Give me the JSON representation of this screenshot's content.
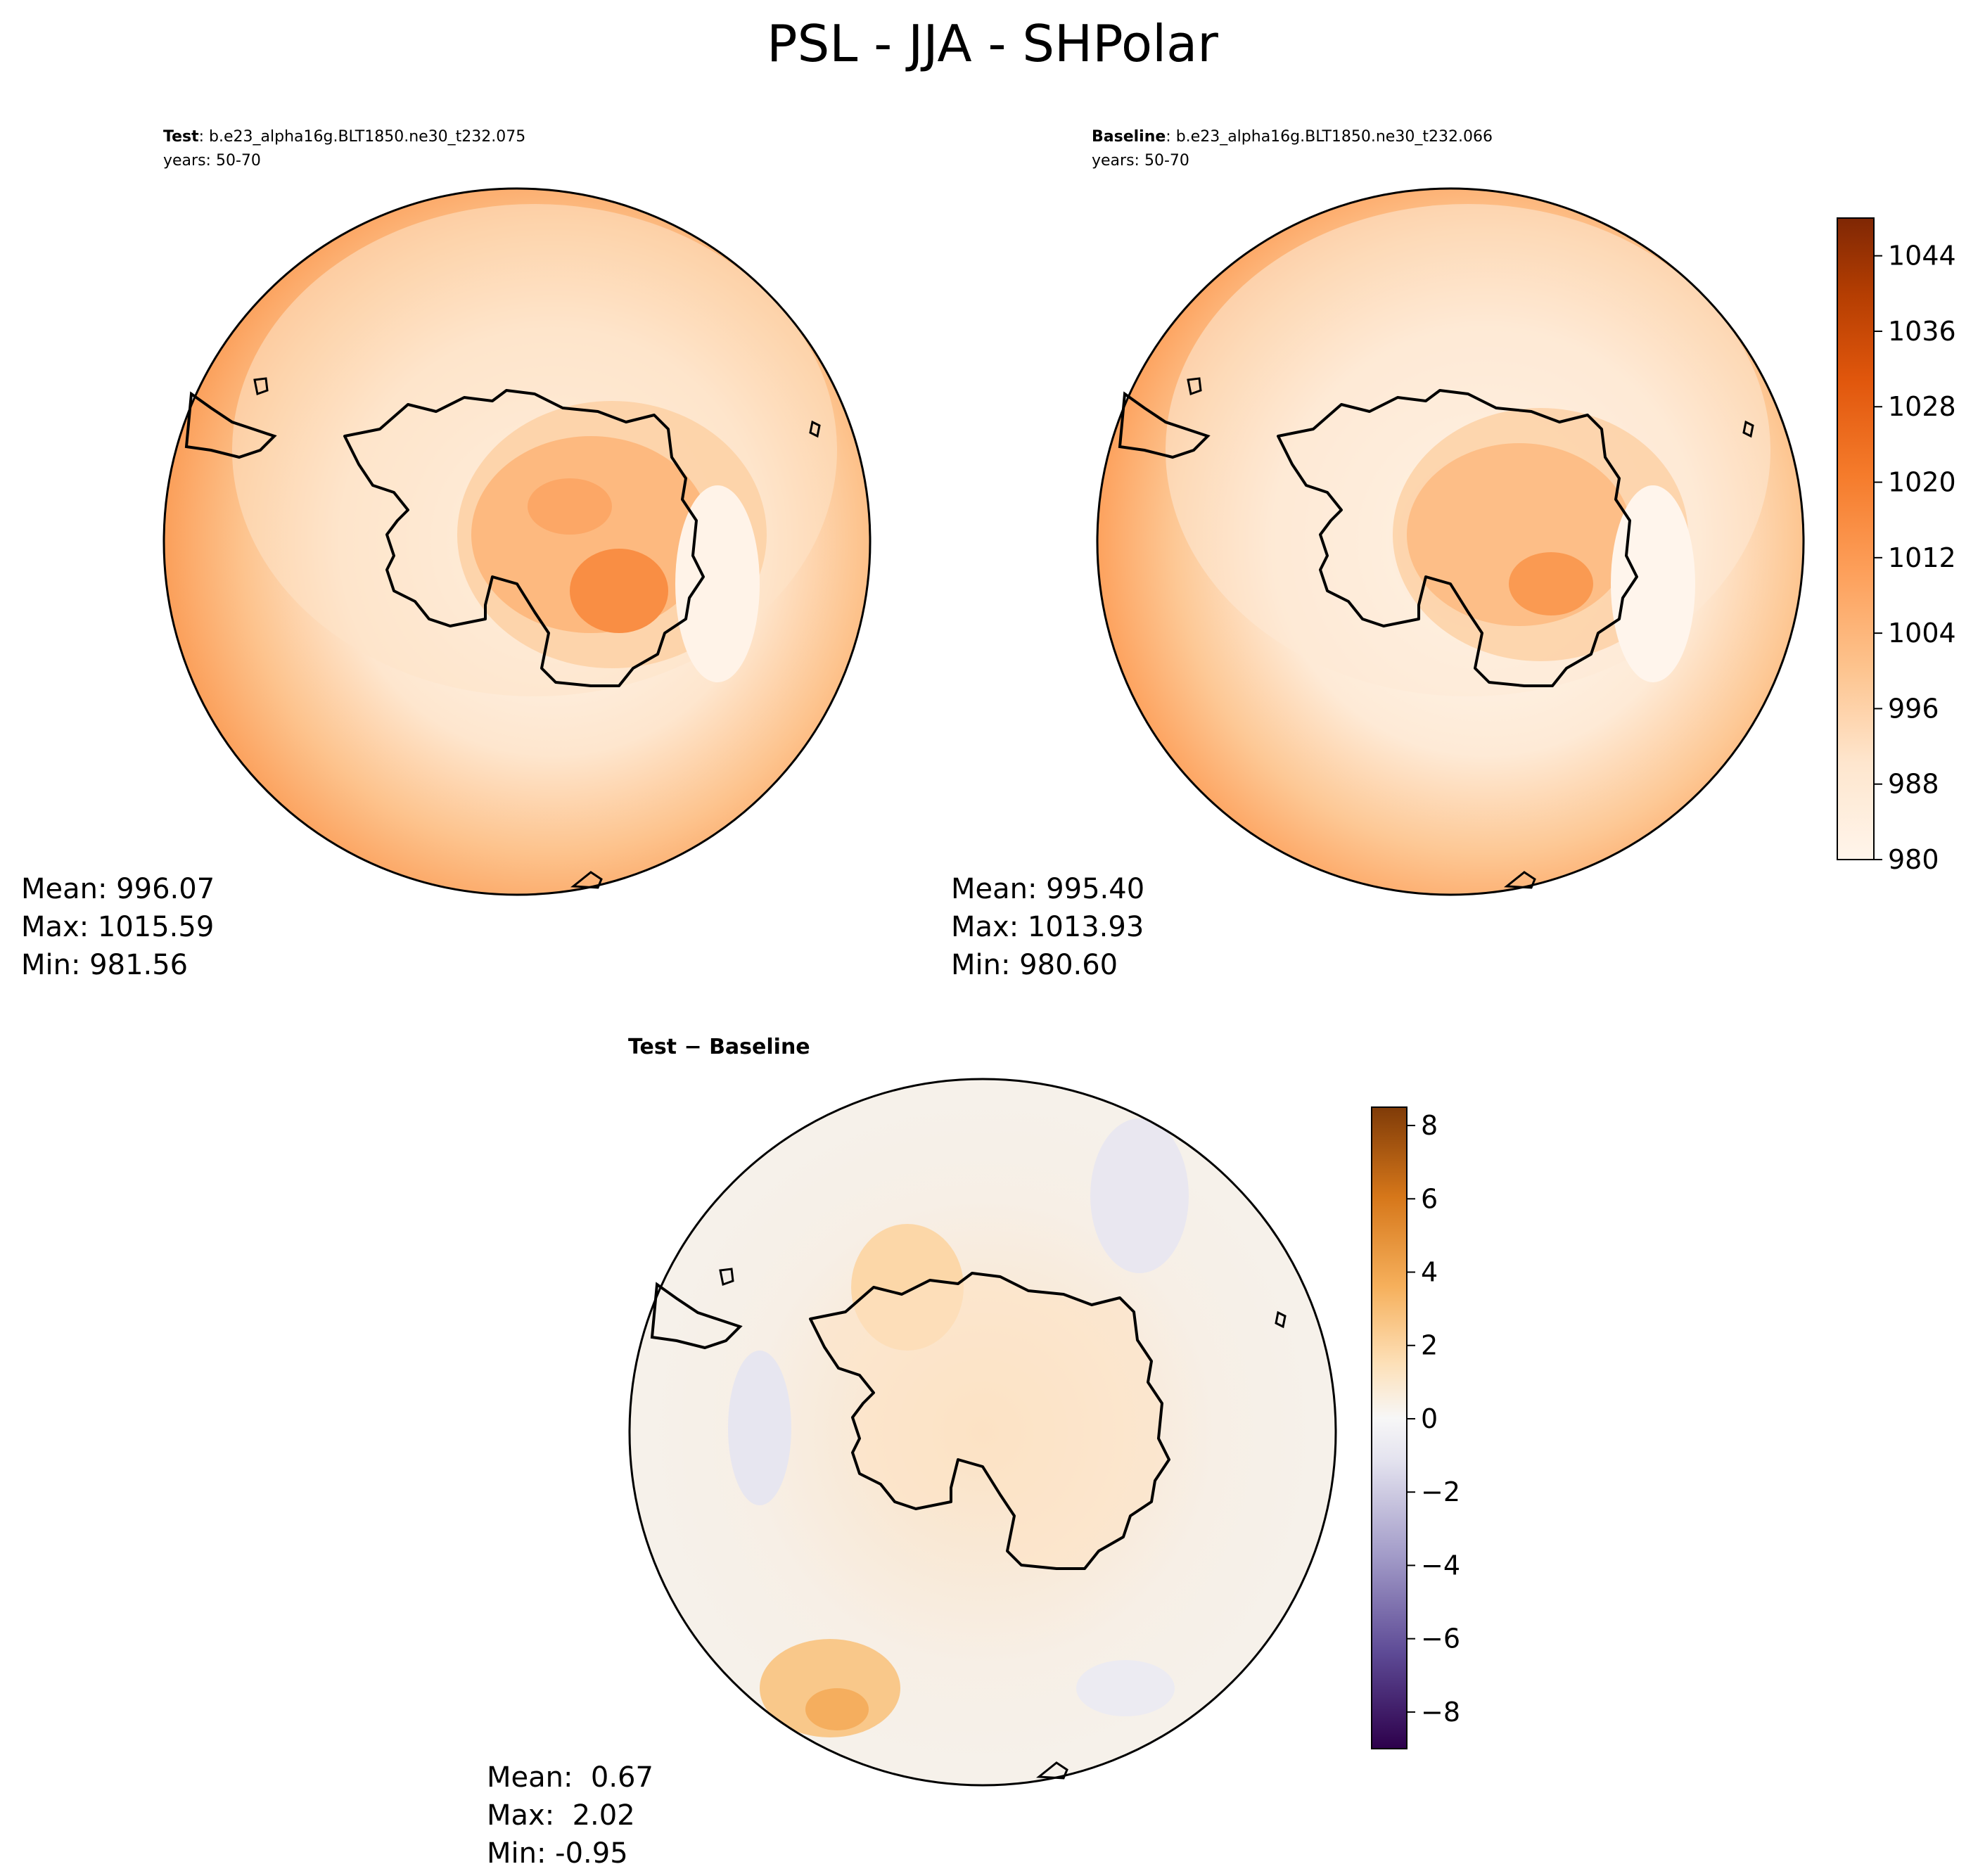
{
  "figure_title": "PSL - JJA - SHPolar",
  "panels": {
    "test": {
      "label": "Test",
      "case": ": b.e23_alpha16g.BLT1850.ne30_t232.075",
      "years": "years: 50-70",
      "mean": "Mean: 996.07",
      "max": "Max: 1015.59",
      "min": "Min: 981.56"
    },
    "baseline": {
      "label": "Baseline",
      "case": ": b.e23_alpha16g.BLT1850.ne30_t232.066",
      "years": "years: 50-70",
      "mean": "Mean: 995.40",
      "max": "Max: 1013.93",
      "min": "Min: 980.60"
    },
    "diff": {
      "title_a": "Test",
      "title_op": " − ",
      "title_b": "Baseline",
      "mean": "Mean:  0.67",
      "max": "Max:  2.02",
      "min": "Min: -0.95"
    }
  },
  "colors": {
    "psl_low": "#fff5eb",
    "psl_high": "#7f2704",
    "diff_negative": "#2d004b",
    "diff_zero": "#f7f7f7",
    "diff_positive": "#7f3b08"
  },
  "chart_data": [
    {
      "type": "heatmap",
      "panel": "Test",
      "projection": "south-polar-stereographic",
      "variable": "PSL",
      "stats": {
        "mean": 996.07,
        "max": 1015.59,
        "min": 981.56
      },
      "colorbar": {
        "range": [
          980,
          1048
        ],
        "ticks": [
          "980",
          "988",
          "996",
          "1004",
          "1012",
          "1020",
          "1028",
          "1036",
          "1044"
        ]
      }
    },
    {
      "type": "heatmap",
      "panel": "Baseline",
      "projection": "south-polar-stereographic",
      "variable": "PSL",
      "stats": {
        "mean": 995.4,
        "max": 1013.93,
        "min": 980.6
      },
      "colorbar": {
        "range": [
          980,
          1048
        ],
        "ticks": [
          "980",
          "988",
          "996",
          "1004",
          "1012",
          "1020",
          "1028",
          "1036",
          "1044"
        ]
      }
    },
    {
      "type": "heatmap",
      "panel": "Test - Baseline",
      "projection": "south-polar-stereographic",
      "stats": {
        "mean": 0.67,
        "max": 2.02,
        "min": -0.95
      },
      "colorbar": {
        "range": [
          -9,
          8.5
        ],
        "ticks": [
          "−8",
          "−6",
          "−4",
          "−2",
          "0",
          "2",
          "4",
          "6",
          "8"
        ]
      }
    }
  ]
}
